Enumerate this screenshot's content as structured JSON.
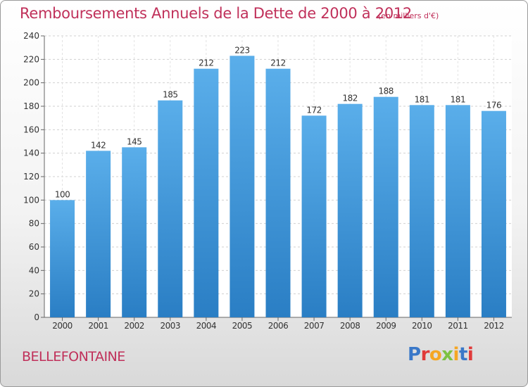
{
  "header": {
    "title": "Remboursements Annuels de la Dette de 2000 à 2012",
    "unit": "(en milliers d'€)"
  },
  "footer": {
    "city": "BELLEFONTAINE",
    "logo": "Proxiti"
  },
  "colors": {
    "title": "#c0305a",
    "bar_top": "#5aaeea",
    "bar_bottom": "#2a7ec4",
    "logo_letters": [
      "#3a78c8",
      "#e03a3a",
      "#f5a623",
      "#7cc242",
      "#f5a623",
      "#3a78c8",
      "#e03a3a"
    ]
  },
  "chart_data": {
    "type": "bar",
    "categories": [
      "2000",
      "2001",
      "2002",
      "2003",
      "2004",
      "2005",
      "2006",
      "2007",
      "2008",
      "2009",
      "2010",
      "2011",
      "2012"
    ],
    "values": [
      100,
      142,
      145,
      185,
      212,
      223,
      212,
      172,
      182,
      188,
      181,
      181,
      176
    ],
    "ylim": [
      0,
      240
    ],
    "yticks": [
      0,
      20,
      40,
      60,
      80,
      100,
      120,
      140,
      160,
      180,
      200,
      220,
      240
    ],
    "grid": true,
    "legend": "none"
  }
}
